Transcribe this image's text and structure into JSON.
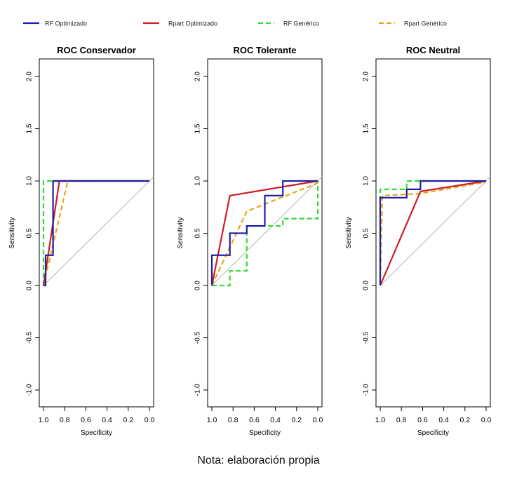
{
  "note": "Nota: elaboración propia",
  "legend": [
    {
      "name": "RF Optimizado",
      "color": "#1f1fa8",
      "dash": false
    },
    {
      "name": "Rpart Optimizado",
      "color": "#cc1f24",
      "dash": false
    },
    {
      "name": "RF Genérico",
      "color": "#33dd33",
      "dash": true
    },
    {
      "name": "Rpart Genérico",
      "color": "#e6a817",
      "dash": true
    }
  ],
  "chart_data": [
    {
      "type": "line",
      "title": "ROC Conservador",
      "xlabel": "Specificity",
      "ylabel": "Sensitivity",
      "xlim": [
        1.0,
        0.0
      ],
      "ylim": [
        -1.0,
        2.0
      ],
      "x_ticks": [
        "1.0",
        "0.8",
        "0.6",
        "0.4",
        "0.2",
        "0.0"
      ],
      "y_ticks": [
        "-1.0",
        "-0.5",
        "0.0",
        "0.5",
        "1.0",
        "1.5",
        "2.0"
      ],
      "diagonal": true,
      "series": [
        {
          "name": "RF Optimizado",
          "x": [
            1.0,
            0.98,
            0.98,
            0.91,
            0.91,
            0.0
          ],
          "y": [
            0.0,
            0.0,
            0.29,
            0.29,
            1.0,
            1.0
          ]
        },
        {
          "name": "Rpart Optimizado",
          "x": [
            1.0,
            0.85,
            0.0
          ],
          "y": [
            0.0,
            1.0,
            1.0
          ]
        },
        {
          "name": "RF Genérico",
          "x": [
            1.0,
            1.0,
            0.0
          ],
          "y": [
            0.0,
            1.0,
            1.0
          ]
        },
        {
          "name": "Rpart Genérico",
          "x": [
            1.0,
            0.77,
            0.0
          ],
          "y": [
            0.0,
            1.0,
            1.0
          ]
        }
      ]
    },
    {
      "type": "line",
      "title": "ROC Tolerante",
      "xlabel": "Specificity",
      "ylabel": "Sensitivity",
      "xlim": [
        1.0,
        0.0
      ],
      "ylim": [
        -1.0,
        2.0
      ],
      "x_ticks": [
        "1.0",
        "0.8",
        "0.6",
        "0.4",
        "0.2",
        "0.0"
      ],
      "y_ticks": [
        "-1.0",
        "-0.5",
        "0.0",
        "0.5",
        "1.0",
        "1.5",
        "2.0"
      ],
      "diagonal": true,
      "series": [
        {
          "name": "RF Optimizado",
          "x": [
            1.0,
            1.0,
            0.83,
            0.83,
            0.67,
            0.67,
            0.5,
            0.5,
            0.33,
            0.33,
            0.0
          ],
          "y": [
            0.0,
            0.29,
            0.29,
            0.5,
            0.5,
            0.57,
            0.57,
            0.86,
            0.86,
            1.0,
            1.0
          ]
        },
        {
          "name": "Rpart Optimizado",
          "x": [
            1.0,
            0.83,
            0.0
          ],
          "y": [
            0.0,
            0.86,
            1.0
          ]
        },
        {
          "name": "RF Genérico",
          "x": [
            1.0,
            0.83,
            0.83,
            0.67,
            0.67,
            0.33,
            0.33,
            0.0,
            0.0
          ],
          "y": [
            0.0,
            0.0,
            0.14,
            0.14,
            0.57,
            0.57,
            0.64,
            0.64,
            1.0
          ]
        },
        {
          "name": "Rpart Genérico",
          "x": [
            1.0,
            0.67,
            0.0
          ],
          "y": [
            0.0,
            0.71,
            0.98
          ]
        }
      ]
    },
    {
      "type": "line",
      "title": "ROC Neutral",
      "xlabel": "Specificity",
      "ylabel": "Sensitivity",
      "xlim": [
        1.0,
        0.0
      ],
      "ylim": [
        -1.0,
        2.0
      ],
      "x_ticks": [
        "1.0",
        "0.8",
        "0.6",
        "0.4",
        "0.2",
        "0.0"
      ],
      "y_ticks": [
        "-1.0",
        "-0.5",
        "0.0",
        "0.5",
        "1.0",
        "1.5",
        "2.0"
      ],
      "diagonal": true,
      "series": [
        {
          "name": "RF Optimizado",
          "x": [
            1.0,
            1.0,
            0.75,
            0.75,
            0.62,
            0.62,
            0.0
          ],
          "y": [
            0.0,
            0.84,
            0.84,
            0.92,
            0.92,
            1.0,
            1.0
          ]
        },
        {
          "name": "Rpart Optimizado",
          "x": [
            1.0,
            0.62,
            0.0
          ],
          "y": [
            0.0,
            0.9,
            1.0
          ]
        },
        {
          "name": "RF Genérico",
          "x": [
            1.0,
            1.0,
            0.75,
            0.75,
            0.0
          ],
          "y": [
            0.0,
            0.92,
            0.92,
            1.0,
            1.0
          ]
        },
        {
          "name": "Rpart Genérico",
          "x": [
            1.0,
            0.98,
            0.62,
            0.0
          ],
          "y": [
            0.0,
            0.86,
            0.88,
            0.99
          ]
        }
      ]
    }
  ]
}
